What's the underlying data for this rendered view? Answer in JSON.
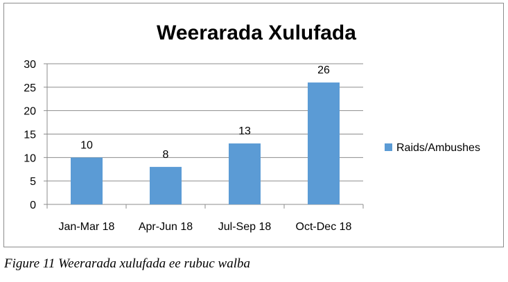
{
  "chart_data": {
    "type": "bar",
    "title": "Weerarada Xulufada",
    "categories": [
      "Jan-Mar 18",
      "Apr-Jun 18",
      "Jul-Sep 18",
      "Oct-Dec 18"
    ],
    "series": [
      {
        "name": "Raids/Ambushes",
        "values": [
          10,
          8,
          13,
          26
        ],
        "color": "#5b9bd5"
      }
    ],
    "data_labels": [
      "10",
      "8",
      "13",
      "26"
    ],
    "ylim": [
      0,
      30
    ],
    "yticks": [
      0,
      5,
      10,
      15,
      20,
      25,
      30
    ],
    "xlabel": "",
    "ylabel": "",
    "grid": true,
    "legend_position": "right"
  },
  "caption": "Figure 11 Weerarada xulufada ee rubuc walba"
}
